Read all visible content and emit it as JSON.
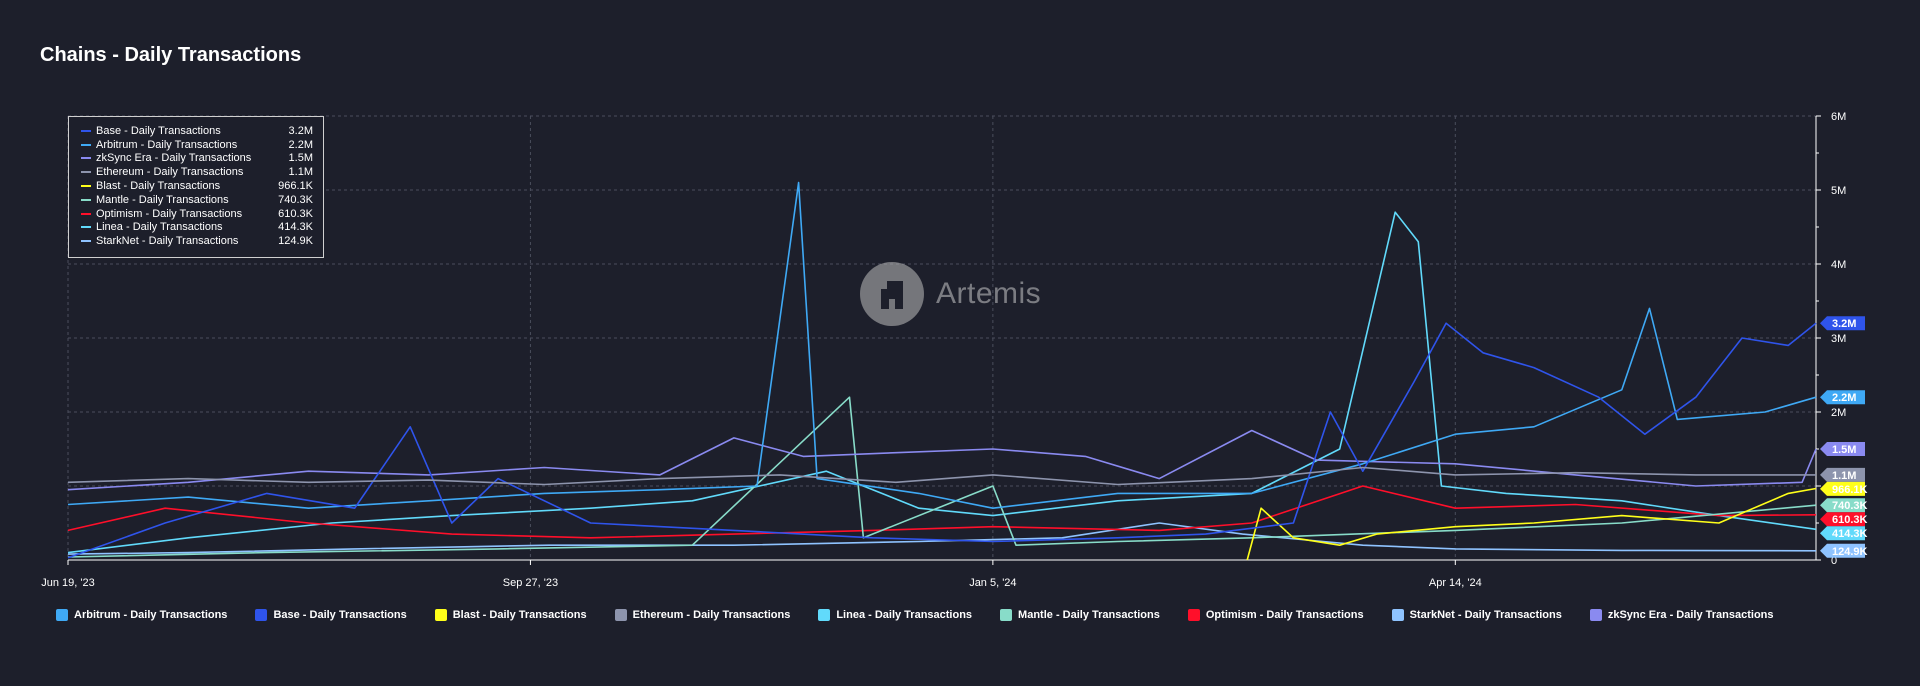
{
  "title": "Chains - Daily Transactions",
  "watermark": {
    "text": "Artemis",
    "icon": "artemis-logo-icon"
  },
  "tooltip": {
    "rows": [
      {
        "label": "Base - Daily Transactions",
        "value": "3.2M",
        "color": "#2f54eb"
      },
      {
        "label": "Arbitrum - Daily Transactions",
        "value": "2.2M",
        "color": "#3fa9f5"
      },
      {
        "label": "zkSync Era - Daily Transactions",
        "value": "1.5M",
        "color": "#8a8af0"
      },
      {
        "label": "Ethereum - Daily Transactions",
        "value": "1.1M",
        "color": "#8d94ad"
      },
      {
        "label": "Blast - Daily Transactions",
        "value": "966.1K",
        "color": "#ffff1a"
      },
      {
        "label": "Mantle - Daily Transactions",
        "value": "740.3K",
        "color": "#88dcc9"
      },
      {
        "label": "Optimism - Daily Transactions",
        "value": "610.3K",
        "color": "#ff0f2a"
      },
      {
        "label": "Linea - Daily Transactions",
        "value": "414.3K",
        "color": "#61dafb"
      },
      {
        "label": "StarkNet - Daily Transactions",
        "value": "124.9K",
        "color": "#8fc3ff"
      }
    ]
  },
  "legend": [
    {
      "label": "Arbitrum - Daily Transactions",
      "color": "#3fa9f5"
    },
    {
      "label": "Base - Daily Transactions",
      "color": "#2f54eb"
    },
    {
      "label": "Blast - Daily Transactions",
      "color": "#ffff1a"
    },
    {
      "label": "Ethereum - Daily Transactions",
      "color": "#8d94ad"
    },
    {
      "label": "Linea - Daily Transactions",
      "color": "#61dafb"
    },
    {
      "label": "Mantle - Daily Transactions",
      "color": "#88dcc9"
    },
    {
      "label": "Optimism - Daily Transactions",
      "color": "#ff0f2a"
    },
    {
      "label": "StarkNet - Daily Transactions",
      "color": "#8fc3ff"
    },
    {
      "label": "zkSync Era - Daily Transactions",
      "color": "#8a8af0"
    }
  ],
  "chart_data": {
    "type": "line",
    "title": "Chains - Daily Transactions",
    "x_range": [
      "2023-06-19",
      "2024-07-01"
    ],
    "x_ticks": [
      {
        "date": "2023-06-19",
        "label": "Jun 19, '23"
      },
      {
        "date": "2023-09-27",
        "label": "Sep 27, '23"
      },
      {
        "date": "2024-01-05",
        "label": "Jan 5, '24"
      },
      {
        "date": "2024-04-14",
        "label": "Apr 14, '24"
      }
    ],
    "y_range": [
      0,
      6000000
    ],
    "y_ticks": [
      {
        "value": 0,
        "label": "0"
      },
      {
        "value": 1000000,
        "label": ""
      },
      {
        "value": 2000000,
        "label": "2M"
      },
      {
        "value": 3000000,
        "label": "3M"
      },
      {
        "value": 4000000,
        "label": "4M"
      },
      {
        "value": 5000000,
        "label": "5M"
      },
      {
        "value": 6000000,
        "label": "6M"
      }
    ],
    "y_axis_position": "right",
    "grid": true,
    "series": [
      {
        "name": "Ethereum - Daily Transactions",
        "color": "#8d94ad",
        "end_label": "1.1M",
        "points": [
          [
            "2023-06-19",
            1050000
          ],
          [
            "2023-07-15",
            1100000
          ],
          [
            "2023-08-10",
            1050000
          ],
          [
            "2023-09-05",
            1080000
          ],
          [
            "2023-09-30",
            1020000
          ],
          [
            "2023-10-25",
            1100000
          ],
          [
            "2023-11-20",
            1150000
          ],
          [
            "2023-12-15",
            1050000
          ],
          [
            "2024-01-05",
            1150000
          ],
          [
            "2024-02-01",
            1020000
          ],
          [
            "2024-03-01",
            1100000
          ],
          [
            "2024-03-25",
            1250000
          ],
          [
            "2024-04-14",
            1150000
          ],
          [
            "2024-05-10",
            1180000
          ],
          [
            "2024-06-05",
            1150000
          ],
          [
            "2024-07-01",
            1150000
          ]
        ]
      },
      {
        "name": "Base - Daily Transactions",
        "color": "#2f54eb",
        "end_label": "3.2M",
        "points": [
          [
            "2023-06-19",
            30000
          ],
          [
            "2023-07-10",
            500000
          ],
          [
            "2023-08-01",
            900000
          ],
          [
            "2023-08-20",
            700000
          ],
          [
            "2023-09-01",
            1800000
          ],
          [
            "2023-09-10",
            500000
          ],
          [
            "2023-09-20",
            1100000
          ],
          [
            "2023-10-10",
            500000
          ],
          [
            "2023-11-10",
            400000
          ],
          [
            "2023-12-10",
            300000
          ],
          [
            "2024-01-05",
            250000
          ],
          [
            "2024-02-01",
            300000
          ],
          [
            "2024-02-20",
            350000
          ],
          [
            "2024-03-10",
            500000
          ],
          [
            "2024-03-18",
            2000000
          ],
          [
            "2024-03-25",
            1200000
          ],
          [
            "2024-04-05",
            2400000
          ],
          [
            "2024-04-12",
            3200000
          ],
          [
            "2024-04-20",
            2800000
          ],
          [
            "2024-05-01",
            2600000
          ],
          [
            "2024-05-15",
            2200000
          ],
          [
            "2024-05-25",
            1700000
          ],
          [
            "2024-06-05",
            2200000
          ],
          [
            "2024-06-15",
            3000000
          ],
          [
            "2024-06-25",
            2900000
          ],
          [
            "2024-07-01",
            3200000
          ]
        ]
      },
      {
        "name": "Arbitrum - Daily Transactions",
        "color": "#3fa9f5",
        "end_label": "2.2M",
        "points": [
          [
            "2023-06-19",
            750000
          ],
          [
            "2023-07-15",
            850000
          ],
          [
            "2023-08-10",
            700000
          ],
          [
            "2023-09-05",
            800000
          ],
          [
            "2023-09-30",
            900000
          ],
          [
            "2023-10-25",
            950000
          ],
          [
            "2023-11-15",
            1000000
          ],
          [
            "2023-11-24",
            5100000
          ],
          [
            "2023-11-28",
            1100000
          ],
          [
            "2023-12-20",
            900000
          ],
          [
            "2024-01-05",
            700000
          ],
          [
            "2024-02-01",
            900000
          ],
          [
            "2024-03-01",
            900000
          ],
          [
            "2024-03-25",
            1300000
          ],
          [
            "2024-04-14",
            1700000
          ],
          [
            "2024-05-01",
            1800000
          ],
          [
            "2024-05-20",
            2300000
          ],
          [
            "2024-05-26",
            3400000
          ],
          [
            "2024-06-01",
            1900000
          ],
          [
            "2024-06-20",
            2000000
          ],
          [
            "2024-07-01",
            2200000
          ]
        ]
      },
      {
        "name": "zkSync Era - Daily Transactions",
        "color": "#8a8af0",
        "end_label": "1.5M",
        "points": [
          [
            "2023-06-19",
            950000
          ],
          [
            "2023-07-15",
            1050000
          ],
          [
            "2023-08-10",
            1200000
          ],
          [
            "2023-09-05",
            1150000
          ],
          [
            "2023-09-30",
            1250000
          ],
          [
            "2023-10-25",
            1150000
          ],
          [
            "2023-11-10",
            1650000
          ],
          [
            "2023-11-25",
            1400000
          ],
          [
            "2023-12-15",
            1450000
          ],
          [
            "2024-01-05",
            1500000
          ],
          [
            "2024-01-25",
            1400000
          ],
          [
            "2024-02-10",
            1100000
          ],
          [
            "2024-03-01",
            1750000
          ],
          [
            "2024-03-15",
            1350000
          ],
          [
            "2024-04-14",
            1300000
          ],
          [
            "2024-05-10",
            1150000
          ],
          [
            "2024-06-05",
            1000000
          ],
          [
            "2024-06-28",
            1050000
          ],
          [
            "2024-07-01",
            1500000
          ]
        ]
      },
      {
        "name": "Blast - Daily Transactions",
        "color": "#ffff1a",
        "end_label": "966.1K",
        "points": [
          [
            "2024-02-29",
            0
          ],
          [
            "2024-03-03",
            700000
          ],
          [
            "2024-03-10",
            300000
          ],
          [
            "2024-03-20",
            200000
          ],
          [
            "2024-03-28",
            350000
          ],
          [
            "2024-04-14",
            450000
          ],
          [
            "2024-05-01",
            500000
          ],
          [
            "2024-05-20",
            600000
          ],
          [
            "2024-06-10",
            500000
          ],
          [
            "2024-06-25",
            900000
          ],
          [
            "2024-07-01",
            966100
          ]
        ]
      },
      {
        "name": "Mantle - Daily Transactions",
        "color": "#88dcc9",
        "end_label": "740.3K",
        "points": [
          [
            "2023-06-19",
            40000
          ],
          [
            "2023-08-01",
            100000
          ],
          [
            "2023-09-20",
            150000
          ],
          [
            "2023-11-01",
            200000
          ],
          [
            "2023-12-05",
            2200000
          ],
          [
            "2023-12-08",
            300000
          ],
          [
            "2024-01-05",
            1000000
          ],
          [
            "2024-01-10",
            200000
          ],
          [
            "2024-02-01",
            250000
          ],
          [
            "2024-03-01",
            300000
          ],
          [
            "2024-04-14",
            400000
          ],
          [
            "2024-05-20",
            500000
          ],
          [
            "2024-07-01",
            740300
          ]
        ]
      },
      {
        "name": "Optimism - Daily Transactions",
        "color": "#ff0f2a",
        "end_label": "610.3K",
        "points": [
          [
            "2023-06-19",
            400000
          ],
          [
            "2023-07-10",
            700000
          ],
          [
            "2023-08-10",
            500000
          ],
          [
            "2023-09-10",
            350000
          ],
          [
            "2023-10-10",
            300000
          ],
          [
            "2023-11-10",
            350000
          ],
          [
            "2023-12-10",
            400000
          ],
          [
            "2024-01-05",
            450000
          ],
          [
            "2024-02-10",
            400000
          ],
          [
            "2024-03-01",
            500000
          ],
          [
            "2024-03-25",
            1000000
          ],
          [
            "2024-04-14",
            700000
          ],
          [
            "2024-05-10",
            750000
          ],
          [
            "2024-06-10",
            600000
          ],
          [
            "2024-07-01",
            610300
          ]
        ]
      },
      {
        "name": "Linea - Daily Transactions",
        "color": "#61dafb",
        "end_label": "414.3K",
        "points": [
          [
            "2023-06-19",
            100000
          ],
          [
            "2023-07-15",
            300000
          ],
          [
            "2023-08-15",
            500000
          ],
          [
            "2023-09-10",
            600000
          ],
          [
            "2023-10-10",
            700000
          ],
          [
            "2023-11-01",
            800000
          ],
          [
            "2023-11-30",
            1200000
          ],
          [
            "2023-12-20",
            700000
          ],
          [
            "2024-01-05",
            600000
          ],
          [
            "2024-02-01",
            800000
          ],
          [
            "2024-03-01",
            900000
          ],
          [
            "2024-03-20",
            1500000
          ],
          [
            "2024-04-01",
            4700000
          ],
          [
            "2024-04-06",
            4300000
          ],
          [
            "2024-04-11",
            1000000
          ],
          [
            "2024-04-25",
            900000
          ],
          [
            "2024-05-20",
            800000
          ],
          [
            "2024-06-10",
            600000
          ],
          [
            "2024-07-01",
            414300
          ]
        ]
      },
      {
        "name": "StarkNet - Daily Transactions",
        "color": "#8fc3ff",
        "end_label": "124.9K",
        "points": [
          [
            "2023-06-19",
            80000
          ],
          [
            "2023-07-15",
            100000
          ],
          [
            "2023-08-20",
            150000
          ],
          [
            "2023-10-01",
            200000
          ],
          [
            "2023-11-10",
            200000
          ],
          [
            "2023-12-20",
            250000
          ],
          [
            "2024-01-20",
            300000
          ],
          [
            "2024-02-10",
            500000
          ],
          [
            "2024-02-28",
            350000
          ],
          [
            "2024-03-25",
            200000
          ],
          [
            "2024-04-14",
            150000
          ],
          [
            "2024-05-20",
            130000
          ],
          [
            "2024-07-01",
            124900
          ]
        ]
      }
    ]
  }
}
